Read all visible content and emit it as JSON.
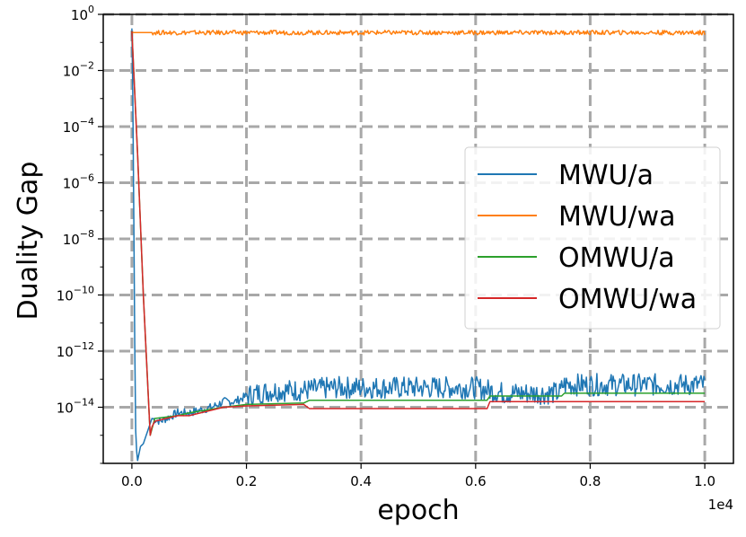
{
  "chart_data": {
    "type": "line",
    "xlabel": "epoch",
    "ylabel": "Duality Gap",
    "x_offset_label": "1e4",
    "y_scale": "log",
    "grid": true,
    "legend_position": "center-right",
    "xlim": [
      -0.05,
      1.05
    ],
    "ylim_exponent": [
      -16,
      0
    ],
    "x_ticks": [
      0.0,
      0.2,
      0.4,
      0.6,
      0.8,
      1.0
    ],
    "x_tick_labels": [
      "0.0",
      "0.2",
      "0.4",
      "0.6",
      "0.8",
      "1.0"
    ],
    "y_ticks": [
      0,
      -2,
      -4,
      -6,
      -8,
      -10,
      -12,
      -14
    ],
    "y_tick_labels": [
      {
        "base": "10",
        "exp": "0"
      },
      {
        "base": "10",
        "exp": "−2"
      },
      {
        "base": "10",
        "exp": "−4"
      },
      {
        "base": "10",
        "exp": "−6"
      },
      {
        "base": "10",
        "exp": "−8"
      },
      {
        "base": "10",
        "exp": "−10"
      },
      {
        "base": "10",
        "exp": "−12"
      },
      {
        "base": "10",
        "exp": "−14"
      }
    ],
    "series": [
      {
        "name": "MWU/a",
        "color": "#1f77b4",
        "points": [
          [
            0.0,
            -0.5
          ],
          [
            0.002,
            -3.5
          ],
          [
            0.004,
            -9
          ],
          [
            0.006,
            -14.5
          ],
          [
            0.008,
            -15.5
          ],
          [
            0.01,
            -15.9
          ],
          [
            0.015,
            -15.4
          ],
          [
            0.02,
            -15.3
          ],
          [
            0.03,
            -14.7
          ],
          [
            0.035,
            -14.4
          ],
          [
            0.05,
            -14.5
          ],
          [
            0.08,
            -14.2
          ],
          [
            0.1,
            -14.2
          ],
          [
            0.12,
            -14.1
          ],
          [
            0.14,
            -14.0
          ],
          [
            0.16,
            -13.8
          ],
          [
            0.18,
            -13.8
          ],
          [
            0.2,
            -13.6
          ],
          [
            0.22,
            -13.5
          ],
          [
            0.25,
            -13.4
          ],
          [
            0.3,
            -13.4
          ],
          [
            0.35,
            -13.3
          ],
          [
            0.4,
            -13.3
          ],
          [
            0.45,
            -13.3
          ],
          [
            0.5,
            -13.3
          ],
          [
            0.55,
            -13.3
          ],
          [
            0.6,
            -13.3
          ],
          [
            0.625,
            -13.4
          ],
          [
            0.65,
            -13.5
          ],
          [
            0.7,
            -13.5
          ],
          [
            0.748,
            -13.5
          ],
          [
            0.752,
            -13.2
          ],
          [
            0.8,
            -13.2
          ],
          [
            0.85,
            -13.2
          ],
          [
            0.9,
            -13.2
          ],
          [
            0.95,
            -13.2
          ],
          [
            1.0,
            -13.2
          ]
        ],
        "noise": [
          0.15,
          0.4
        ]
      },
      {
        "name": "MWU/wa",
        "color": "#ff7f0e",
        "points": [
          [
            0.0,
            -0.65
          ],
          [
            0.1,
            -0.65
          ],
          [
            0.2,
            -0.65
          ],
          [
            0.3,
            -0.65
          ],
          [
            0.4,
            -0.65
          ],
          [
            0.5,
            -0.65
          ],
          [
            0.6,
            -0.65
          ],
          [
            0.7,
            -0.65
          ],
          [
            0.8,
            -0.65
          ],
          [
            0.9,
            -0.65
          ],
          [
            1.0,
            -0.65
          ]
        ],
        "noise": [
          0.08,
          0.08
        ]
      },
      {
        "name": "OMWU/a",
        "color": "#2ca02c",
        "points": [
          [
            0.0,
            -0.6
          ],
          [
            0.01,
            -5
          ],
          [
            0.02,
            -10
          ],
          [
            0.032,
            -15.0
          ],
          [
            0.04,
            -14.4
          ],
          [
            0.08,
            -14.3
          ],
          [
            0.1,
            -14.2
          ],
          [
            0.16,
            -14.0
          ],
          [
            0.2,
            -13.9
          ],
          [
            0.3,
            -13.85
          ],
          [
            0.31,
            -13.75
          ],
          [
            0.4,
            -13.75
          ],
          [
            0.5,
            -13.75
          ],
          [
            0.62,
            -13.75
          ],
          [
            0.625,
            -13.6
          ],
          [
            0.7,
            -13.6
          ],
          [
            0.75,
            -13.6
          ],
          [
            0.755,
            -13.5
          ],
          [
            0.8,
            -13.5
          ],
          [
            0.9,
            -13.5
          ],
          [
            1.0,
            -13.5
          ]
        ],
        "noise": [
          0,
          0
        ]
      },
      {
        "name": "OMWU/wa",
        "color": "#d62728",
        "points": [
          [
            0.0,
            -0.6
          ],
          [
            0.01,
            -5
          ],
          [
            0.02,
            -10
          ],
          [
            0.032,
            -15.0
          ],
          [
            0.035,
            -14.7
          ],
          [
            0.04,
            -14.5
          ],
          [
            0.06,
            -14.4
          ],
          [
            0.08,
            -14.3
          ],
          [
            0.1,
            -14.3
          ],
          [
            0.16,
            -14.0
          ],
          [
            0.2,
            -13.95
          ],
          [
            0.3,
            -13.9
          ],
          [
            0.31,
            -14.05
          ],
          [
            0.4,
            -14.05
          ],
          [
            0.5,
            -14.05
          ],
          [
            0.62,
            -14.05
          ],
          [
            0.625,
            -13.8
          ],
          [
            0.7,
            -13.8
          ],
          [
            0.8,
            -13.8
          ],
          [
            0.9,
            -13.8
          ],
          [
            1.0,
            -13.8
          ]
        ],
        "noise": [
          0,
          0
        ]
      }
    ]
  }
}
